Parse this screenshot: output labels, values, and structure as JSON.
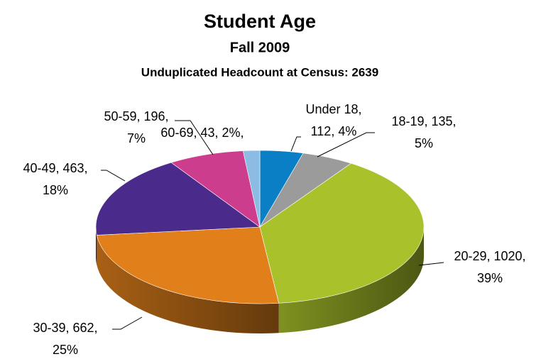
{
  "chart_data": {
    "type": "pie3d",
    "title": "Student Age",
    "subtitle": "Fall 2009",
    "subtitle2": "Unduplicated Headcount at Census: 2639",
    "categories": [
      "Under 18",
      "18-19",
      "20-29",
      "30-39",
      "40-49",
      "50-59",
      "60-69"
    ],
    "values": [
      112,
      135,
      1020,
      662,
      463,
      196,
      43
    ],
    "percent_labels": [
      "4%",
      "5%",
      "39%",
      "25%",
      "18%",
      "7%",
      "2%"
    ],
    "colors": [
      "#0b7fc6",
      "#9b9b9b",
      "#a9c12b",
      "#e1801a",
      "#4a2a8a",
      "#cd3d8e",
      "#8cbbe3"
    ]
  }
}
